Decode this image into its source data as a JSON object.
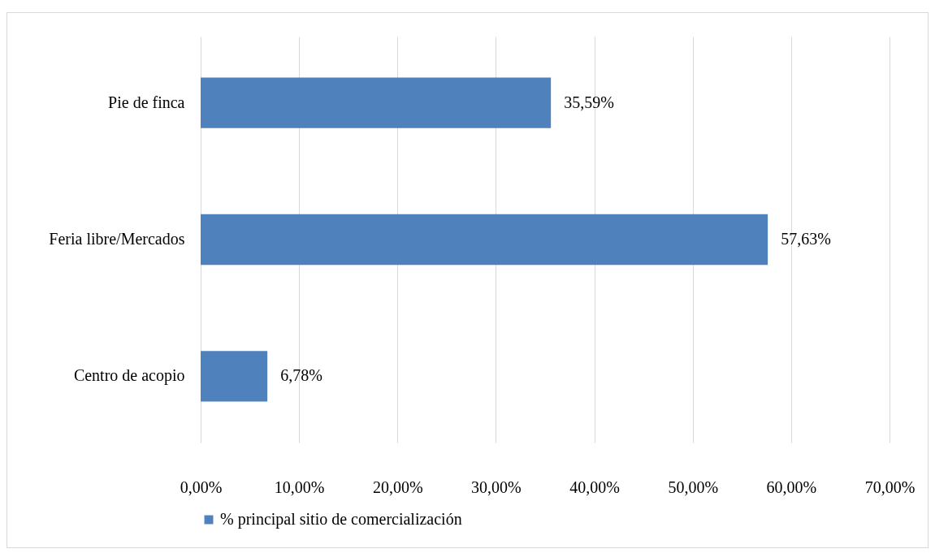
{
  "chart_data": {
    "type": "bar",
    "orientation": "horizontal",
    "categories": [
      "Pie de finca",
      "Feria libre/Mercados",
      "Centro de acopio"
    ],
    "series": [
      {
        "name": "% principal sitio de comercialización",
        "color": "#4f81bd",
        "values": [
          35.59,
          57.63,
          6.78
        ],
        "value_labels": [
          "35,59%",
          "57,63%",
          "6,78%"
        ]
      }
    ],
    "xlim": [
      0,
      70
    ],
    "xticks": [
      {
        "value": 0,
        "label": "0,00%"
      },
      {
        "value": 10,
        "label": "10,00%"
      },
      {
        "value": 20,
        "label": "20,00%"
      },
      {
        "value": 30,
        "label": "30,00%"
      },
      {
        "value": 40,
        "label": "40,00%"
      },
      {
        "value": 50,
        "label": "50,00%"
      },
      {
        "value": 60,
        "label": "60,00%"
      },
      {
        "value": 70,
        "label": "70,00%"
      }
    ],
    "grid": "x",
    "legend": "bottom"
  }
}
